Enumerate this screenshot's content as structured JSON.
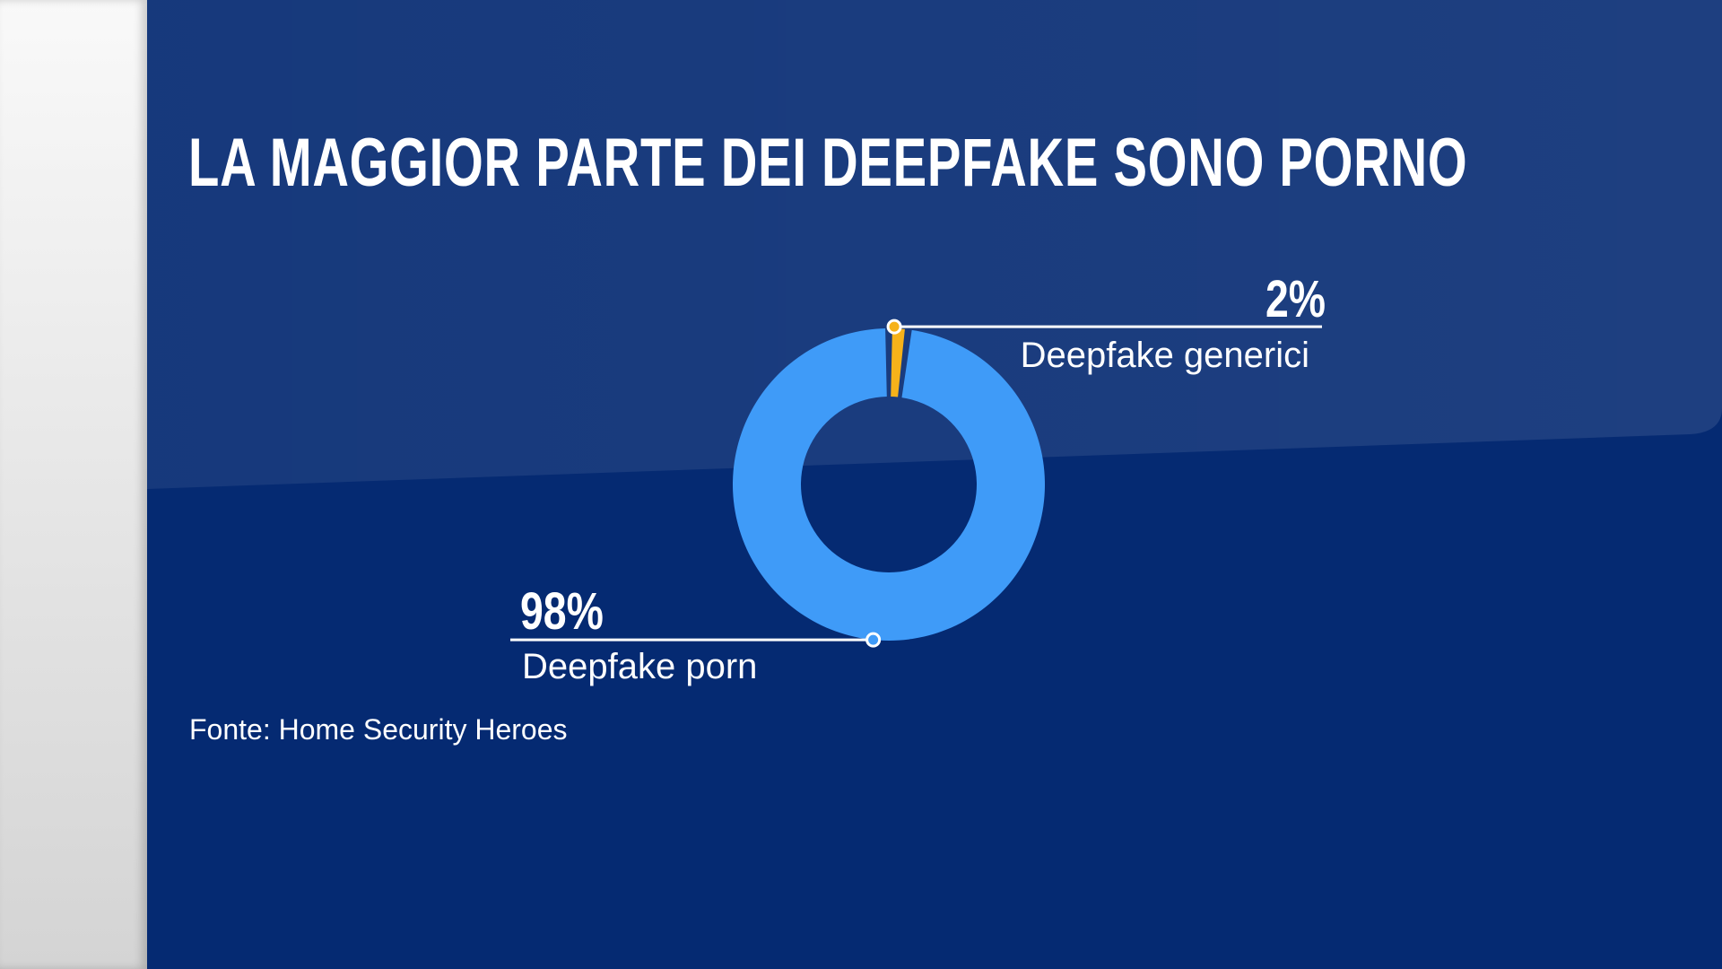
{
  "title": "LA MAGGIOR PARTE DEI DEEPFAKE SONO PORNO",
  "source": "Fonte: Home Security Heroes",
  "colors": {
    "background": "#052a72",
    "ring": "#3f9bf8",
    "highlight": "#f6b21a",
    "text": "#ffffff"
  },
  "chart_data": {
    "type": "pie",
    "title": "LA MAGGIOR PARTE DEI DEEPFAKE SONO PORNO",
    "style": "donut",
    "categories": [
      "Deepfake generici",
      "Deepfake porn"
    ],
    "values": [
      2,
      98
    ],
    "value_labels": [
      "2%",
      "98%"
    ],
    "colors": [
      "#f6b21a",
      "#3f9bf8"
    ]
  }
}
